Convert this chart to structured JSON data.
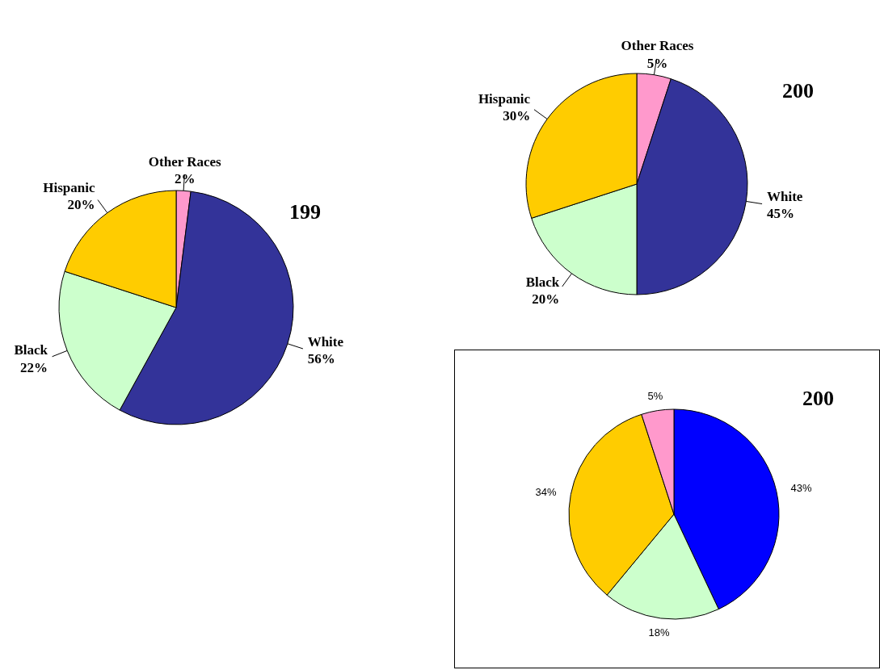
{
  "chart_data": [
    {
      "type": "pie",
      "title": "199",
      "categories": [
        "Other Races",
        "White",
        "Black",
        "Hispanic"
      ],
      "values": [
        2,
        56,
        22,
        20
      ],
      "colors": [
        "#ff99cc",
        "#333399",
        "#ccffcc",
        "#ffcc00"
      ],
      "value_labels": [
        "2%",
        "56%",
        "22%",
        "20%"
      ]
    },
    {
      "type": "pie",
      "title": "200",
      "categories": [
        "Other Races",
        "White",
        "Black",
        "Hispanic"
      ],
      "values": [
        5,
        45,
        20,
        30
      ],
      "colors": [
        "#ff99cc",
        "#333399",
        "#ccffcc",
        "#ffcc00"
      ],
      "value_labels": [
        "5%",
        "45%",
        "20%",
        "30%"
      ]
    },
    {
      "type": "pie",
      "title": "200",
      "categories": [
        null,
        null,
        null,
        null
      ],
      "values": [
        43,
        18,
        34,
        5
      ],
      "colors": [
        "#0000ff",
        "#ccffcc",
        "#ffcc00",
        "#ff99cc"
      ],
      "value_labels": [
        "43%",
        "18%",
        "34%",
        "5%"
      ]
    }
  ]
}
